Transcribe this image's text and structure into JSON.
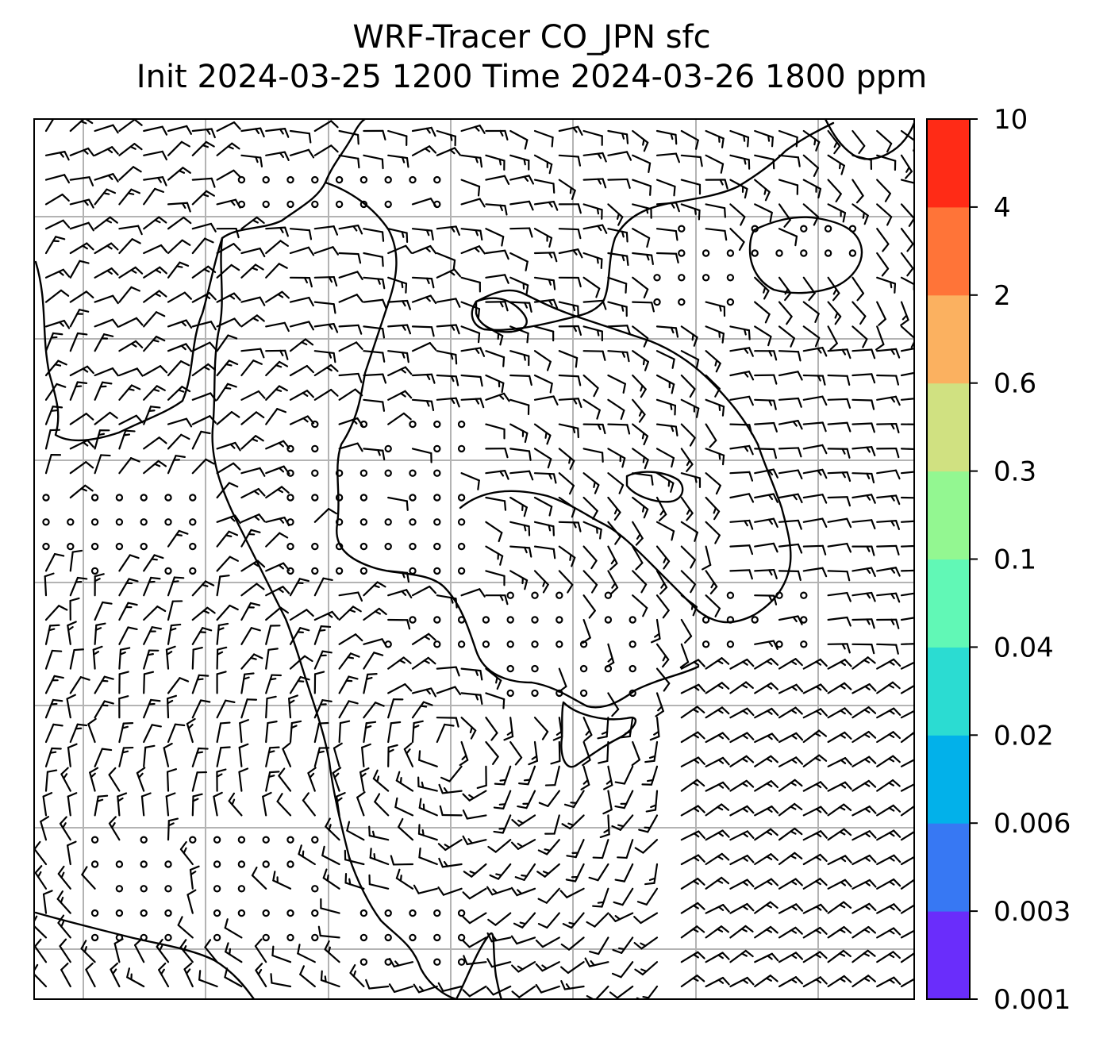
{
  "title": {
    "line1": "WRF-Tracer CO_JPN sfc",
    "line2": "Init 2024-03-25 1200 Time 2024-03-26 1800 ppm"
  },
  "colorbar": {
    "levels": [
      "0.001",
      "0.003",
      "0.006",
      "0.02",
      "0.04",
      "0.1",
      "0.3",
      "0.6",
      "2",
      "4",
      "10"
    ],
    "colors": [
      "#6a2dfb",
      "#3778f3",
      "#02b1ea",
      "#2bdcd2",
      "#61f8b6",
      "#93f791",
      "#d0e181",
      "#fbb160",
      "#ff7438",
      "#ff2b16"
    ]
  },
  "map": {
    "grid": "on",
    "gridline_color": "#b3b3b3",
    "coastline_color": "#000000",
    "symbols": "wind barbs and calm circles"
  }
}
